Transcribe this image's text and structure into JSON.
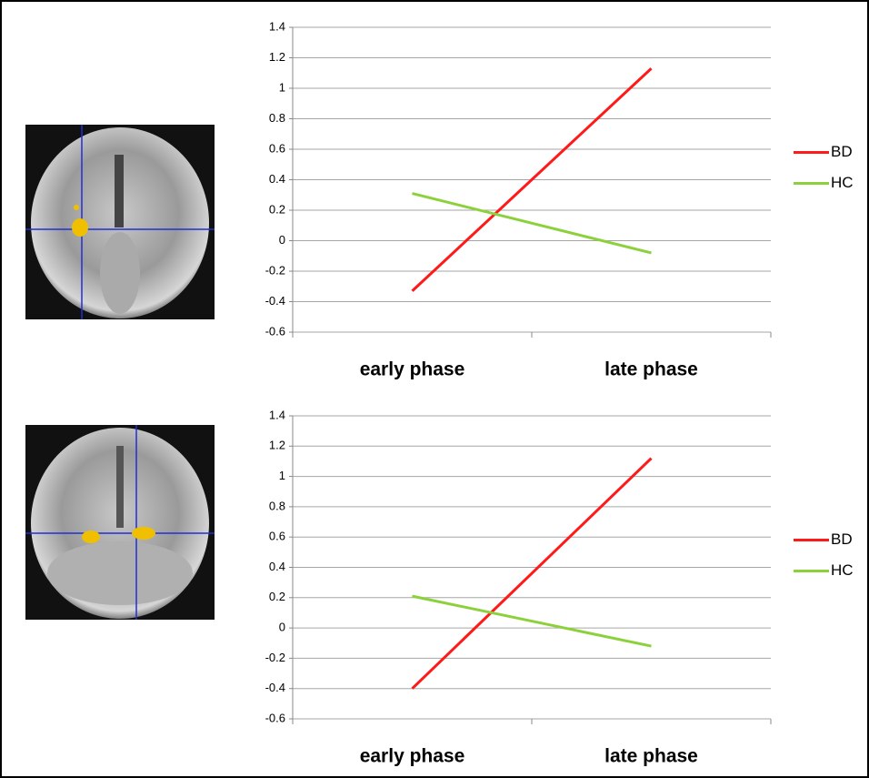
{
  "chart_data": [
    {
      "type": "line",
      "categories": [
        "early phase",
        "late phase"
      ],
      "series": [
        {
          "name": "BD",
          "color": "#ff1a1a",
          "values": [
            -0.33,
            1.13
          ]
        },
        {
          "name": "HC",
          "color": "#8cd13c",
          "values": [
            0.31,
            -0.08
          ]
        }
      ],
      "ylim": [
        -0.6,
        1.4
      ],
      "yticks": [
        -0.6,
        -0.4,
        -0.2,
        0,
        0.2,
        0.4,
        0.6,
        0.8,
        1,
        1.2,
        1.4
      ],
      "grid": true,
      "legend": "right"
    },
    {
      "type": "line",
      "categories": [
        "early phase",
        "late phase"
      ],
      "series": [
        {
          "name": "BD",
          "color": "#ff1a1a",
          "values": [
            -0.4,
            1.12
          ]
        },
        {
          "name": "HC",
          "color": "#8cd13c",
          "values": [
            0.21,
            -0.12
          ]
        }
      ],
      "ylim": [
        -0.6,
        1.4
      ],
      "yticks": [
        -0.6,
        -0.4,
        -0.2,
        0,
        0.2,
        0.4,
        0.6,
        0.8,
        1,
        1.2,
        1.4
      ],
      "grid": true,
      "legend": "right"
    }
  ]
}
